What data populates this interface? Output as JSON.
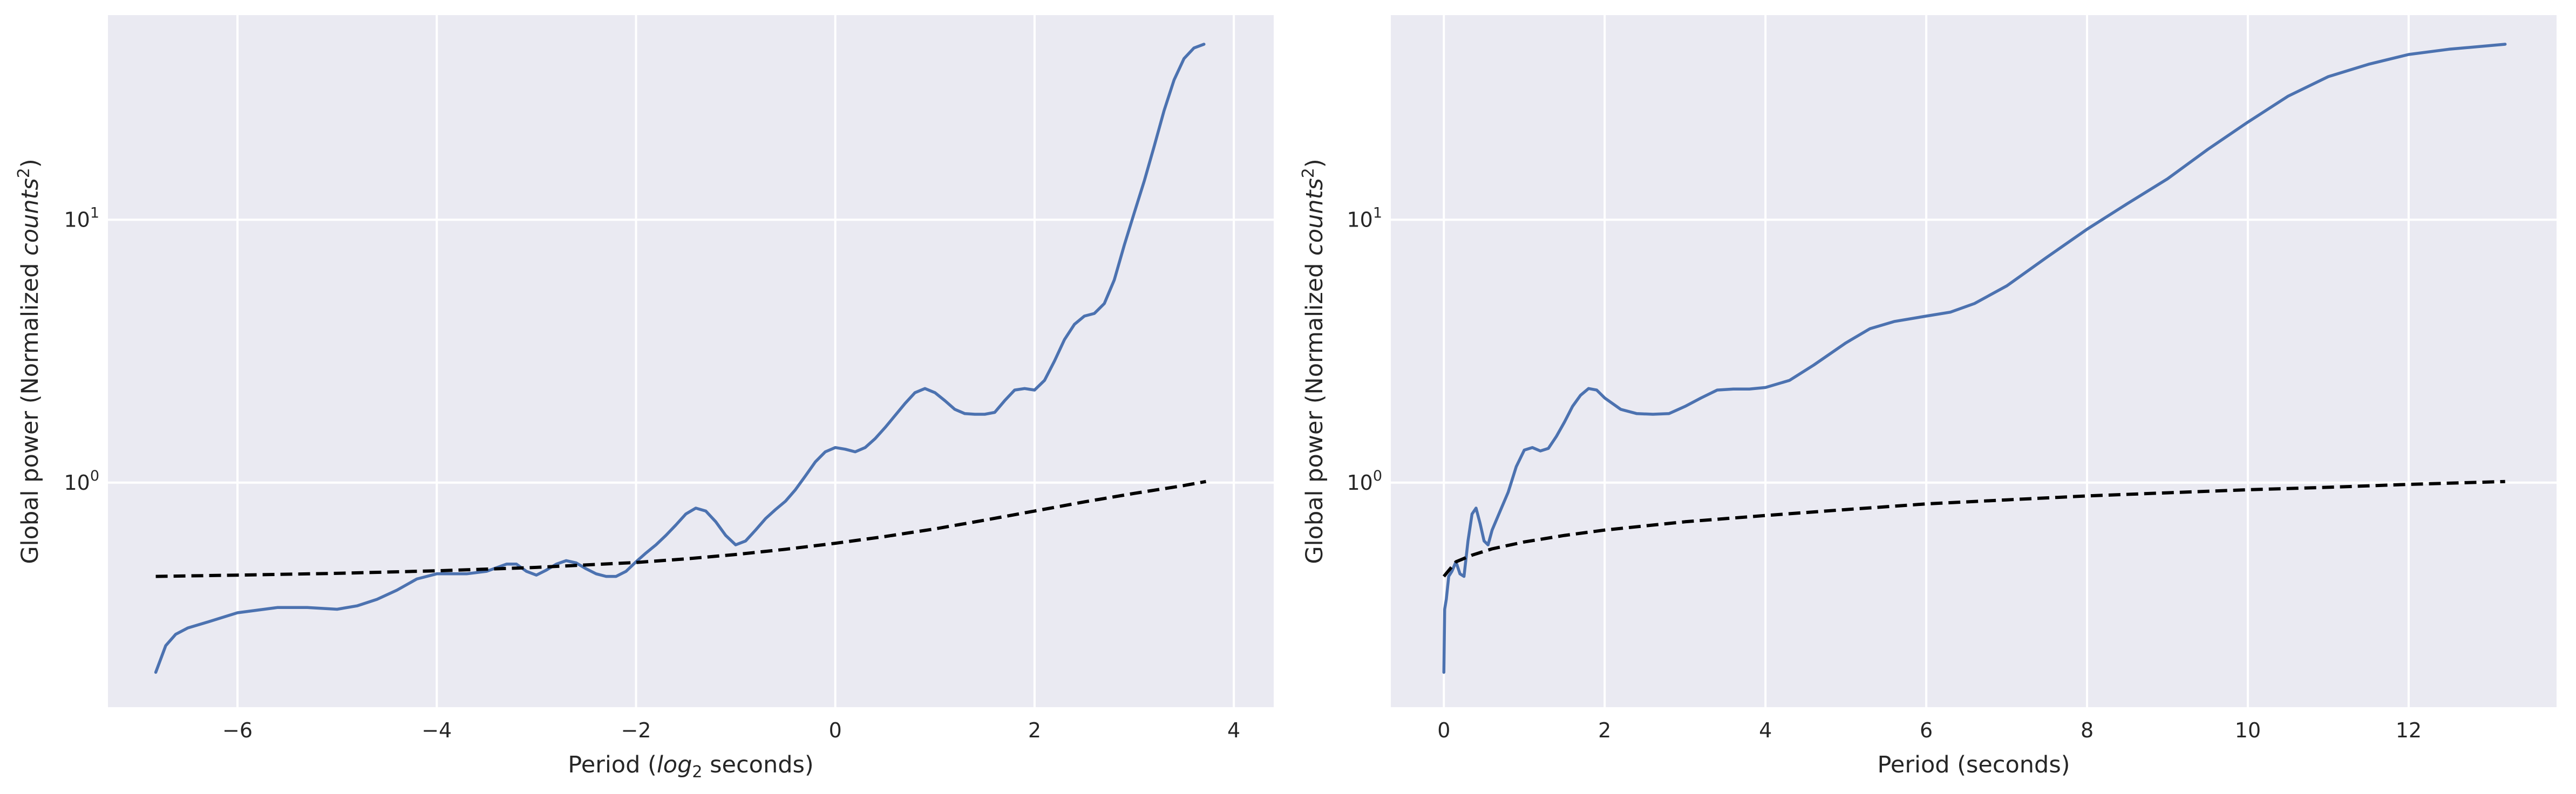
{
  "chart_data": [
    {
      "type": "line",
      "xlabel_pre": "Period (",
      "xlabel_math": "log",
      "xlabel_sub": "2",
      "xlabel_post": " seconds)",
      "ylabel_pre": "Global power (Normalized ",
      "ylabel_math": "counts",
      "ylabel_sup": "2",
      "ylabel_post": ")",
      "yscale": "log",
      "xlim": [
        -7.3,
        4.4
      ],
      "ylim": [
        0.14,
        60
      ],
      "xticks": [
        {
          "value": -6,
          "label": "−6"
        },
        {
          "value": -4,
          "label": "−4"
        },
        {
          "value": -2,
          "label": "−2"
        },
        {
          "value": 0,
          "label": "0"
        },
        {
          "value": 2,
          "label": "2"
        },
        {
          "value": 4,
          "label": "4"
        }
      ],
      "yticks": [
        {
          "value": 1,
          "base": "10",
          "exp": "0"
        },
        {
          "value": 10,
          "base": "10",
          "exp": "1"
        }
      ],
      "grid": true,
      "background": "#eaeaf2",
      "series": [
        {
          "style": "solid",
          "color": "#4c72b0",
          "x": [
            -6.82,
            -6.72,
            -6.62,
            -6.5,
            -6.3,
            -6.0,
            -5.6,
            -5.3,
            -5.0,
            -4.8,
            -4.6,
            -4.4,
            -4.2,
            -4.0,
            -3.7,
            -3.5,
            -3.3,
            -3.2,
            -3.1,
            -3.0,
            -2.9,
            -2.8,
            -2.7,
            -2.6,
            -2.5,
            -2.4,
            -2.3,
            -2.2,
            -2.1,
            -2.0,
            -1.9,
            -1.8,
            -1.7,
            -1.6,
            -1.5,
            -1.4,
            -1.3,
            -1.2,
            -1.1,
            -1.0,
            -0.9,
            -0.8,
            -0.7,
            -0.6,
            -0.5,
            -0.4,
            -0.3,
            -0.2,
            -0.1,
            0.0,
            0.1,
            0.2,
            0.3,
            0.4,
            0.5,
            0.6,
            0.7,
            0.8,
            0.9,
            1.0,
            1.1,
            1.2,
            1.3,
            1.4,
            1.5,
            1.6,
            1.7,
            1.8,
            1.9,
            2.0,
            2.1,
            2.2,
            2.3,
            2.4,
            2.5,
            2.6,
            2.7,
            2.8,
            2.9,
            3.0,
            3.1,
            3.2,
            3.3,
            3.4,
            3.5,
            3.6,
            3.7
          ],
          "y": [
            0.19,
            0.24,
            0.265,
            0.28,
            0.295,
            0.32,
            0.335,
            0.335,
            0.33,
            0.34,
            0.36,
            0.39,
            0.43,
            0.45,
            0.45,
            0.46,
            0.49,
            0.49,
            0.46,
            0.445,
            0.465,
            0.49,
            0.505,
            0.495,
            0.47,
            0.45,
            0.44,
            0.44,
            0.46,
            0.5,
            0.54,
            0.58,
            0.63,
            0.69,
            0.76,
            0.8,
            0.78,
            0.71,
            0.63,
            0.58,
            0.6,
            0.66,
            0.73,
            0.79,
            0.85,
            0.94,
            1.06,
            1.2,
            1.31,
            1.36,
            1.34,
            1.31,
            1.36,
            1.47,
            1.62,
            1.8,
            2.0,
            2.2,
            2.28,
            2.2,
            2.05,
            1.9,
            1.83,
            1.82,
            1.82,
            1.85,
            2.05,
            2.25,
            2.28,
            2.25,
            2.45,
            2.9,
            3.5,
            4.0,
            4.3,
            4.4,
            4.8,
            5.9,
            8.0,
            10.6,
            14.0,
            19.0,
            26.0,
            34.0,
            41.0,
            45.0,
            46.5
          ]
        },
        {
          "style": "dashed",
          "color": "#000000",
          "x": [
            -6.82,
            -6.0,
            -5.0,
            -4.0,
            -3.0,
            -2.0,
            -1.5,
            -1.0,
            -0.5,
            0.0,
            0.5,
            1.0,
            1.5,
            2.0,
            2.5,
            3.0,
            3.5,
            3.72
          ],
          "y": [
            0.44,
            0.445,
            0.452,
            0.462,
            0.476,
            0.497,
            0.513,
            0.533,
            0.558,
            0.588,
            0.624,
            0.667,
            0.72,
            0.78,
            0.845,
            0.91,
            0.975,
            1.01
          ]
        }
      ]
    },
    {
      "type": "line",
      "xlabel_pre": "Period (seconds)",
      "xlabel_math": "",
      "xlabel_sub": "",
      "xlabel_post": "",
      "ylabel_pre": "Global power (Normalized ",
      "ylabel_math": "counts",
      "ylabel_sup": "2",
      "ylabel_post": ")",
      "yscale": "log",
      "xlim": [
        -0.66,
        13.84
      ],
      "ylim": [
        0.14,
        60
      ],
      "xticks": [
        {
          "value": 0,
          "label": "0"
        },
        {
          "value": 2,
          "label": "2"
        },
        {
          "value": 4,
          "label": "4"
        },
        {
          "value": 6,
          "label": "6"
        },
        {
          "value": 8,
          "label": "8"
        },
        {
          "value": 10,
          "label": "10"
        },
        {
          "value": 12,
          "label": "12"
        }
      ],
      "yticks": [
        {
          "value": 1,
          "base": "10",
          "exp": "0"
        },
        {
          "value": 10,
          "base": "10",
          "exp": "1"
        }
      ],
      "grid": true,
      "background": "#eaeaf2",
      "series": [
        {
          "style": "solid",
          "color": "#4c72b0",
          "x": [
            0.0,
            0.01,
            0.03,
            0.06,
            0.1,
            0.15,
            0.2,
            0.25,
            0.3,
            0.35,
            0.4,
            0.45,
            0.5,
            0.55,
            0.6,
            0.7,
            0.8,
            0.9,
            1.0,
            1.1,
            1.2,
            1.3,
            1.4,
            1.5,
            1.6,
            1.7,
            1.8,
            1.9,
            2.0,
            2.2,
            2.4,
            2.6,
            2.8,
            3.0,
            3.2,
            3.4,
            3.6,
            3.8,
            4.0,
            4.3,
            4.6,
            5.0,
            5.3,
            5.6,
            6.0,
            6.3,
            6.6,
            7.0,
            7.5,
            8.0,
            8.5,
            9.0,
            9.5,
            10.0,
            10.5,
            11.0,
            11.5,
            12.0,
            12.5,
            13.2
          ],
          "y": [
            0.19,
            0.33,
            0.36,
            0.44,
            0.46,
            0.5,
            0.45,
            0.44,
            0.6,
            0.76,
            0.8,
            0.7,
            0.6,
            0.58,
            0.66,
            0.78,
            0.92,
            1.15,
            1.33,
            1.36,
            1.32,
            1.35,
            1.5,
            1.7,
            1.95,
            2.15,
            2.28,
            2.25,
            2.1,
            1.9,
            1.83,
            1.82,
            1.83,
            1.95,
            2.1,
            2.25,
            2.27,
            2.27,
            2.3,
            2.45,
            2.8,
            3.4,
            3.85,
            4.1,
            4.3,
            4.45,
            4.8,
            5.6,
            7.2,
            9.2,
            11.5,
            14.3,
            18.5,
            23.5,
            29.5,
            35.0,
            39.0,
            42.5,
            44.5,
            46.5
          ]
        },
        {
          "style": "dashed",
          "color": "#000000",
          "x": [
            0.0,
            0.15,
            0.35,
            0.6,
            1.0,
            1.5,
            2.0,
            3.0,
            4.0,
            5.0,
            6.0,
            7.0,
            8.0,
            9.0,
            10.0,
            11.0,
            12.0,
            13.2
          ],
          "y": [
            0.44,
            0.5,
            0.53,
            0.56,
            0.595,
            0.63,
            0.66,
            0.71,
            0.75,
            0.79,
            0.83,
            0.86,
            0.89,
            0.915,
            0.94,
            0.96,
            0.985,
            1.01
          ]
        }
      ]
    }
  ]
}
